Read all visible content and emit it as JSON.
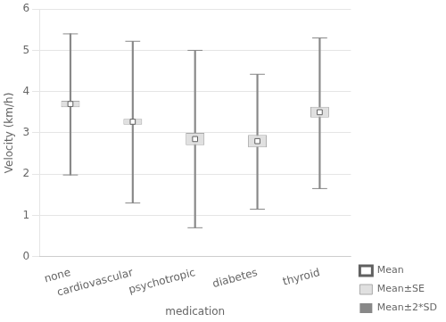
{
  "chart_data": {
    "type": "box",
    "categories": [
      "none",
      "cardiovascular",
      "psychotropic",
      "diabetes",
      "thyroid"
    ],
    "xlabel": "medication",
    "ylabel": "Velocity (km/h)",
    "ylim": [
      0,
      6
    ],
    "yticks": [
      0,
      1,
      2,
      3,
      4,
      5,
      6
    ],
    "grid": "y",
    "legend": "lower right",
    "series": [
      {
        "name": "Mean",
        "color": "#606060",
        "marker": "square",
        "values": [
          3.7,
          3.27,
          2.85,
          2.8,
          3.5
        ]
      },
      {
        "name": "Mean±SE",
        "color": "#e0e0e0",
        "low": [
          3.62,
          3.2,
          2.7,
          2.65,
          3.37
        ],
        "high": [
          3.78,
          3.34,
          3.0,
          2.95,
          3.63
        ]
      },
      {
        "name": "Mean±2*SD",
        "color": "#888888",
        "low": [
          1.98,
          1.3,
          0.7,
          1.15,
          1.65
        ],
        "high": [
          5.4,
          5.22,
          5.0,
          4.42,
          5.3
        ]
      }
    ]
  }
}
